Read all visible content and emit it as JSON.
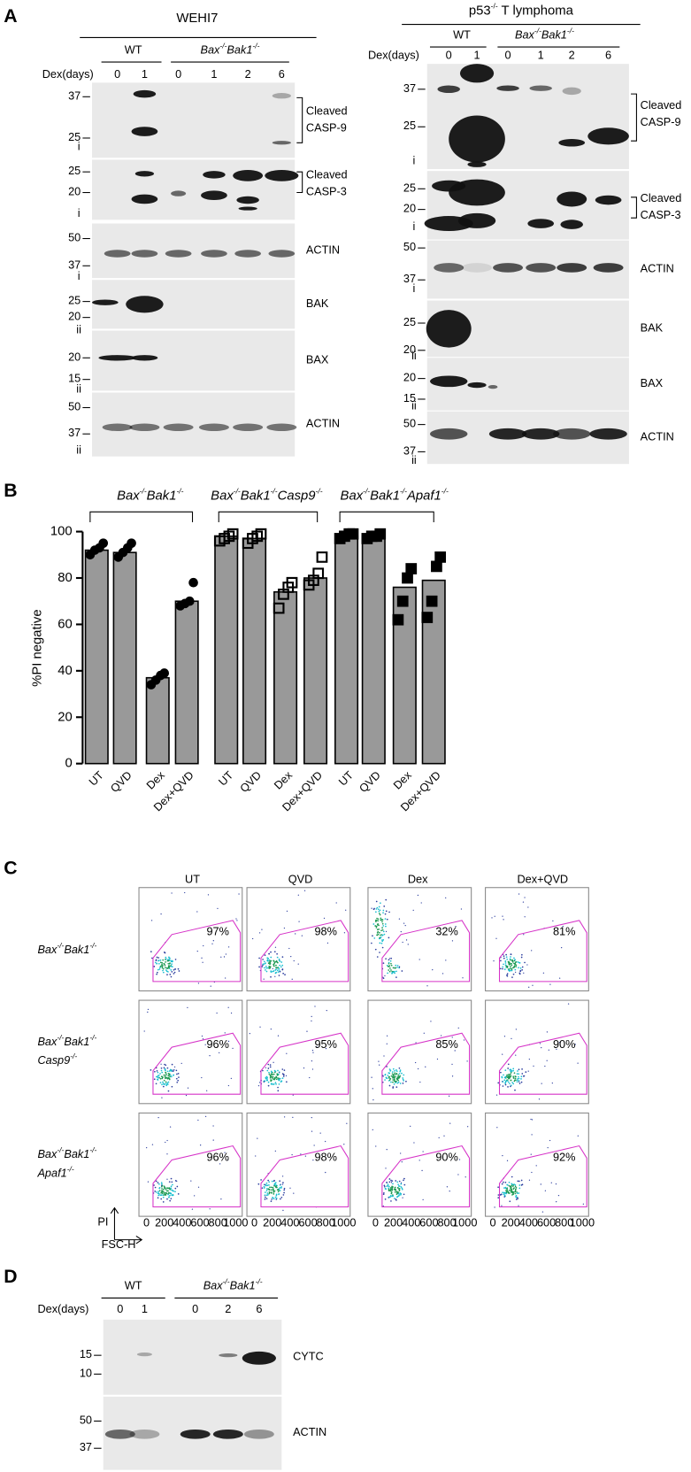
{
  "panel_labels": {
    "a": "A",
    "b": "B",
    "c": "C",
    "d": "D"
  },
  "panel_a": {
    "left": {
      "title": "WEHI7",
      "groups": [
        "WT",
        "Bax-/-Bak1-/-"
      ],
      "dex_label": "Dex(days)",
      "days": [
        "0",
        "1",
        "0",
        "1",
        "2",
        "6"
      ],
      "blots": [
        {
          "markers": [
            "37",
            "25"
          ],
          "gel": "i",
          "label": [
            "Cleaved",
            "CASP-9"
          ]
        },
        {
          "markers": [
            "25",
            "20"
          ],
          "gel": "i",
          "label": [
            "Cleaved",
            "CASP-3"
          ]
        },
        {
          "markers": [
            "50",
            "37"
          ],
          "gel": "i",
          "label": [
            "ACTIN"
          ]
        },
        {
          "markers": [
            "25",
            "20"
          ],
          "gel": "ii",
          "label": [
            "BAK"
          ]
        },
        {
          "markers": [
            "20",
            "15"
          ],
          "gel": "ii",
          "label": [
            "BAX"
          ]
        },
        {
          "markers": [
            "50",
            "37"
          ],
          "gel": "ii",
          "label": [
            "ACTIN"
          ]
        }
      ]
    },
    "right": {
      "title": "p53-/- T lymphoma",
      "groups": [
        "WT",
        "Bax-/-Bak1-/-"
      ],
      "dex_label": "Dex(days)",
      "days": [
        "0",
        "1",
        "0",
        "1",
        "2",
        "6"
      ],
      "blots": [
        {
          "markers": [
            "37",
            "25"
          ],
          "gel": "i",
          "label": [
            "Cleaved",
            "CASP-9"
          ]
        },
        {
          "markers": [
            "25",
            "20"
          ],
          "gel": "i",
          "label": [
            "Cleaved",
            "CASP-3"
          ]
        },
        {
          "markers": [
            "50",
            "37"
          ],
          "gel": "i",
          "label": [
            "ACTIN"
          ]
        },
        {
          "markers": [
            "25",
            "20"
          ],
          "gel": "ii",
          "label": [
            "BAK"
          ]
        },
        {
          "markers": [
            "20",
            "15"
          ],
          "gel": "ii",
          "label": [
            "BAX"
          ]
        },
        {
          "markers": [
            "50",
            "37"
          ],
          "gel": "ii",
          "label": [
            "ACTIN"
          ]
        }
      ]
    }
  },
  "chart_data": {
    "type": "bar",
    "ylabel": "%PI negative",
    "ylim": [
      0,
      100
    ],
    "yticks": [
      0,
      20,
      40,
      60,
      80,
      100
    ],
    "bar_color": "#999999",
    "groups": [
      {
        "name": "Bax-/-Bak1-/-",
        "marker": "circle",
        "categories": [
          "UT",
          "QVD",
          "Dex",
          "Dex+QVD"
        ],
        "values": [
          92,
          91,
          37,
          70
        ],
        "points": [
          [
            90,
            92,
            93,
            95
          ],
          [
            89,
            91,
            93,
            95
          ],
          [
            34,
            36,
            38,
            39
          ],
          [
            68,
            69,
            70,
            78
          ]
        ]
      },
      {
        "name": "Bax-/-Bak1-/-Casp9-/-",
        "marker": "open-square",
        "categories": [
          "UT",
          "QVD",
          "Dex",
          "Dex+QVD"
        ],
        "values": [
          98,
          97,
          74,
          80
        ],
        "points": [
          [
            96,
            97,
            98,
            99
          ],
          [
            95,
            97,
            98,
            99
          ],
          [
            67,
            73,
            76,
            78
          ],
          [
            77,
            79,
            82,
            89
          ]
        ]
      },
      {
        "name": "Bax-/-Bak1-/-Apaf1-/-",
        "marker": "square",
        "categories": [
          "UT",
          "QVD",
          "Dex",
          "Dex+QVD"
        ],
        "values": [
          98,
          98,
          76,
          79
        ],
        "points": [
          [
            97,
            98,
            99,
            99
          ],
          [
            97,
            98,
            98,
            99
          ],
          [
            62,
            70,
            80,
            84
          ],
          [
            63,
            70,
            85,
            89
          ]
        ]
      }
    ]
  },
  "panel_c": {
    "columns": [
      "UT",
      "QVD",
      "Dex",
      "Dex+QVD"
    ],
    "rows": [
      {
        "label": [
          "Bax-/-Bak1-/-"
        ],
        "percents": [
          "97%",
          "98%",
          "32%",
          "81%"
        ]
      },
      {
        "label": [
          "Bax-/-Bak1-/-",
          "Casp9-/-"
        ],
        "percents": [
          "96%",
          "95%",
          "85%",
          "90%"
        ]
      },
      {
        "label": [
          "Bax-/-Bak1-/-",
          "Apaf1-/-"
        ],
        "percents": [
          "96%",
          "98%",
          "90%",
          "92%"
        ]
      }
    ],
    "y_axis": "PI",
    "x_axis": "FSC-H",
    "x_ticks": [
      "0",
      "200",
      "400",
      "600",
      "800",
      "1000"
    ]
  },
  "panel_d": {
    "groups": [
      "WT",
      "Bax-/-Bak1-/-"
    ],
    "dex_label": "Dex(days)",
    "days": [
      "0",
      "1",
      "0",
      "2",
      "6"
    ],
    "blots": [
      {
        "markers": [
          "15",
          "10"
        ],
        "label": [
          "CYTC"
        ]
      },
      {
        "markers": [
          "50",
          "37"
        ],
        "label": [
          "ACTIN"
        ]
      }
    ]
  }
}
